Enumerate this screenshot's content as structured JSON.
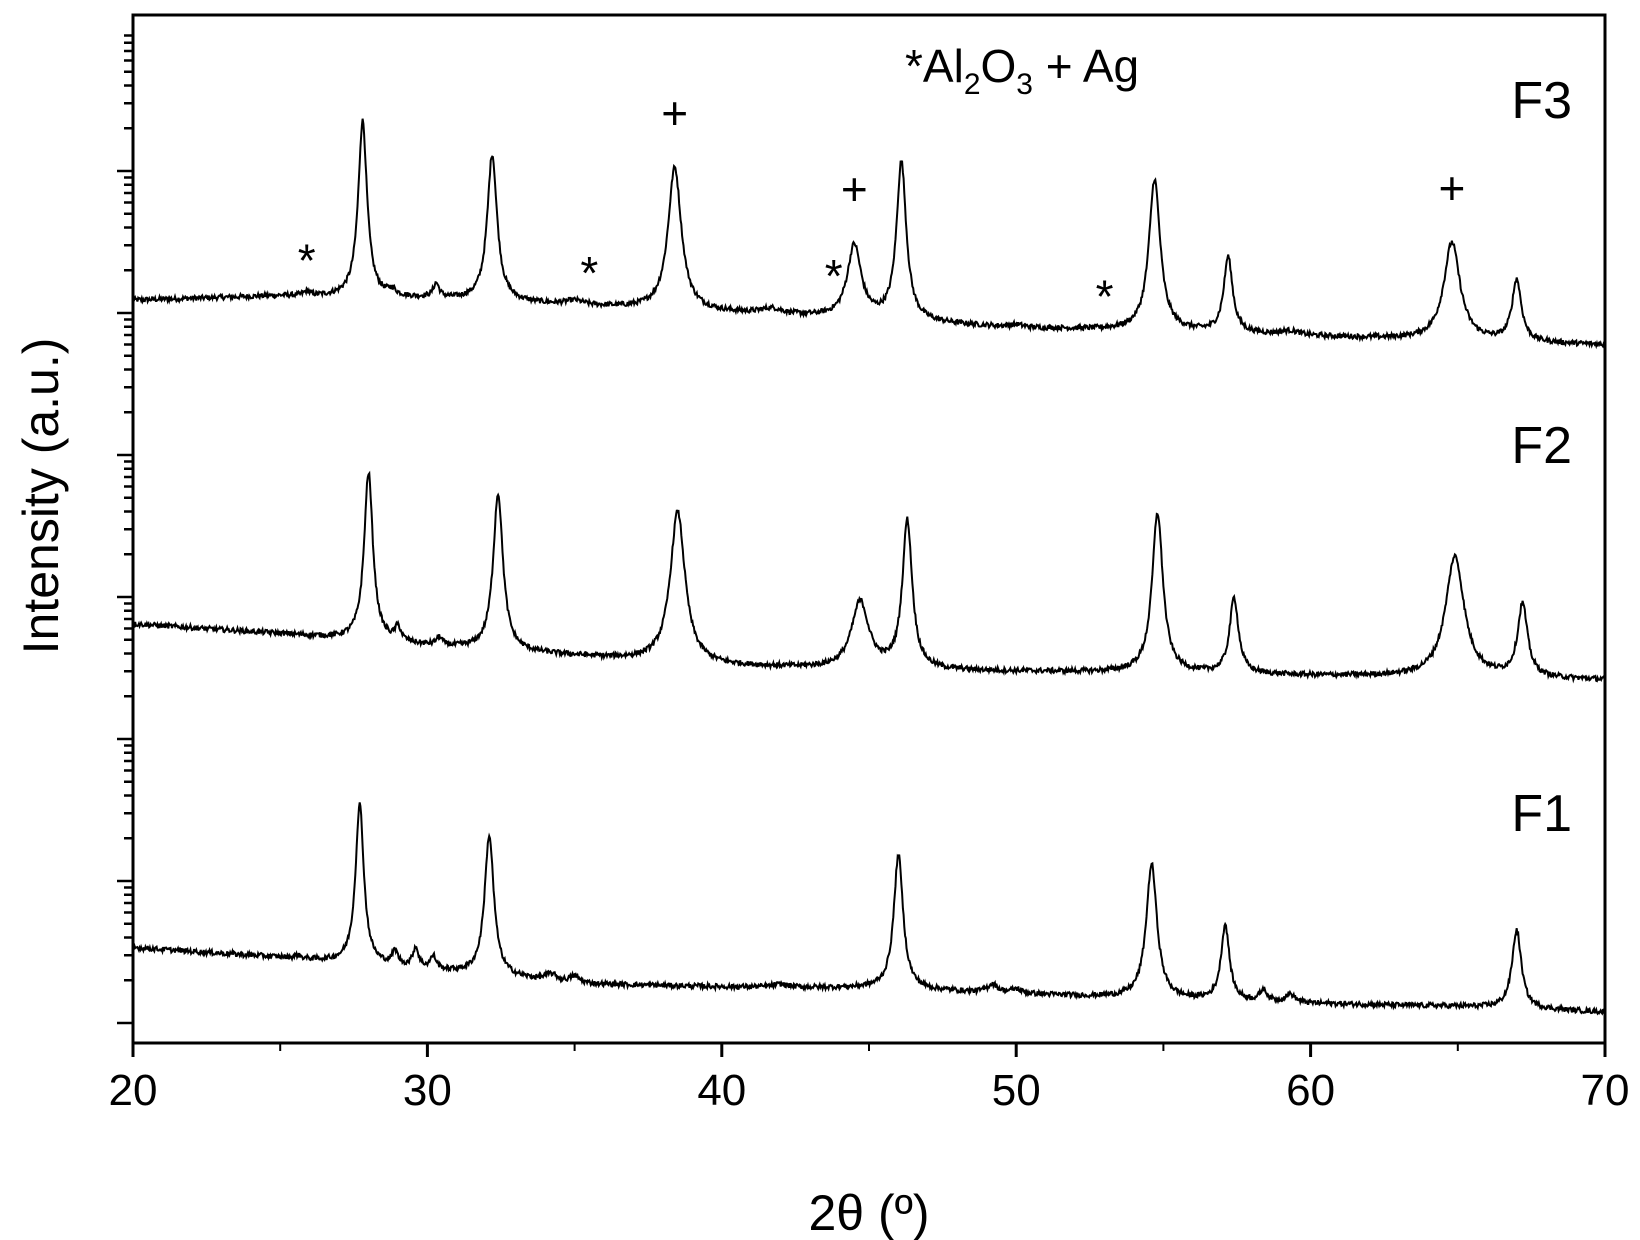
{
  "chart_data": {
    "type": "line",
    "xlabel": "2θ (º)",
    "ylabel": "Intensity (a.u.)",
    "xlim": [
      20,
      70
    ],
    "x_ticks": [
      "20",
      "30",
      "40",
      "50",
      "60",
      "70"
    ],
    "y_scale": "log",
    "legend": {
      "star": "*",
      "text_a": "Al",
      "sub_a": "2",
      "text_b": "O",
      "sub_b": "3",
      "text_c": " + Ag"
    },
    "series": [
      {
        "name": "F3",
        "baseline": [
          [
            20,
            0.16
          ],
          [
            25,
            0.175
          ],
          [
            30,
            0.165
          ],
          [
            35,
            0.14
          ],
          [
            40,
            0.115
          ],
          [
            45,
            0.09
          ],
          [
            50,
            0.06
          ],
          [
            55,
            0.05
          ],
          [
            60,
            0.03
          ],
          [
            65,
            0.015
          ],
          [
            70,
            0.0
          ]
        ],
        "peaks": [
          {
            "x": 25.9,
            "h": 0.015,
            "w": 0.12
          },
          {
            "x": 27.8,
            "h": 0.63,
            "w": 0.18
          },
          {
            "x": 28.8,
            "h": 0.02,
            "w": 0.15
          },
          {
            "x": 30.3,
            "h": 0.05,
            "w": 0.12
          },
          {
            "x": 32.2,
            "h": 0.525,
            "w": 0.2
          },
          {
            "x": 35.0,
            "h": 0.015,
            "w": 0.35
          },
          {
            "x": 38.4,
            "h": 0.51,
            "w": 0.27
          },
          {
            "x": 41.7,
            "h": 0.02,
            "w": 0.45
          },
          {
            "x": 44.5,
            "h": 0.26,
            "w": 0.28
          },
          {
            "x": 46.1,
            "h": 0.565,
            "w": 0.2
          },
          {
            "x": 50.0,
            "h": 0.01,
            "w": 0.3
          },
          {
            "x": 54.7,
            "h": 0.54,
            "w": 0.23
          },
          {
            "x": 57.2,
            "h": 0.27,
            "w": 0.18
          },
          {
            "x": 59.3,
            "h": 0.015,
            "w": 0.4
          },
          {
            "x": 64.8,
            "h": 0.35,
            "w": 0.33
          },
          {
            "x": 67.0,
            "h": 0.22,
            "w": 0.19
          }
        ],
        "markers": [
          {
            "x": 25.9,
            "symbol": "*"
          },
          {
            "x": 35.5,
            "symbol": "*"
          },
          {
            "x": 38.4,
            "symbol": "+"
          },
          {
            "x": 43.8,
            "symbol": "*"
          },
          {
            "x": 44.5,
            "symbol": "+"
          },
          {
            "x": 53.0,
            "symbol": "*"
          },
          {
            "x": 64.8,
            "symbol": "+"
          }
        ]
      },
      {
        "name": "F2",
        "baseline": [
          [
            20,
            0.2
          ],
          [
            25,
            0.165
          ],
          [
            30,
            0.12
          ],
          [
            35,
            0.085
          ],
          [
            40,
            0.05
          ],
          [
            45,
            0.035
          ],
          [
            50,
            0.03
          ],
          [
            55,
            0.025
          ],
          [
            60,
            0.015
          ],
          [
            65,
            0.01
          ],
          [
            70,
            0.0
          ]
        ],
        "peaks": [
          {
            "x": 28.0,
            "h": 0.6,
            "w": 0.18
          },
          {
            "x": 29.0,
            "h": 0.05,
            "w": 0.12
          },
          {
            "x": 30.4,
            "h": 0.03,
            "w": 0.12
          },
          {
            "x": 32.4,
            "h": 0.56,
            "w": 0.2
          },
          {
            "x": 38.5,
            "h": 0.54,
            "w": 0.3
          },
          {
            "x": 44.7,
            "h": 0.24,
            "w": 0.35
          },
          {
            "x": 46.3,
            "h": 0.53,
            "w": 0.2
          },
          {
            "x": 54.8,
            "h": 0.57,
            "w": 0.22
          },
          {
            "x": 57.4,
            "h": 0.27,
            "w": 0.18
          },
          {
            "x": 64.9,
            "h": 0.43,
            "w": 0.38
          },
          {
            "x": 67.2,
            "h": 0.26,
            "w": 0.2
          }
        ]
      },
      {
        "name": "F1",
        "baseline": [
          [
            20,
            0.23
          ],
          [
            25,
            0.195
          ],
          [
            30,
            0.15
          ],
          [
            35,
            0.1
          ],
          [
            40,
            0.09
          ],
          [
            45,
            0.085
          ],
          [
            50,
            0.065
          ],
          [
            55,
            0.045
          ],
          [
            60,
            0.03
          ],
          [
            65,
            0.02
          ],
          [
            70,
            0.0
          ]
        ],
        "peaks": [
          {
            "x": 25.6,
            "h": 0.01,
            "w": 0.12
          },
          {
            "x": 27.7,
            "h": 0.57,
            "w": 0.17
          },
          {
            "x": 28.9,
            "h": 0.05,
            "w": 0.12
          },
          {
            "x": 29.6,
            "h": 0.07,
            "w": 0.12
          },
          {
            "x": 30.2,
            "h": 0.045,
            "w": 0.12
          },
          {
            "x": 32.1,
            "h": 0.5,
            "w": 0.19
          },
          {
            "x": 34.2,
            "h": 0.025,
            "w": 0.25
          },
          {
            "x": 35.0,
            "h": 0.025,
            "w": 0.2
          },
          {
            "x": 42.0,
            "h": 0.01,
            "w": 0.3
          },
          {
            "x": 46.0,
            "h": 0.48,
            "w": 0.19
          },
          {
            "x": 49.2,
            "h": 0.03,
            "w": 0.2
          },
          {
            "x": 50.0,
            "h": 0.015,
            "w": 0.2
          },
          {
            "x": 54.6,
            "h": 0.48,
            "w": 0.22
          },
          {
            "x": 57.1,
            "h": 0.27,
            "w": 0.17
          },
          {
            "x": 58.4,
            "h": 0.04,
            "w": 0.15
          },
          {
            "x": 59.3,
            "h": 0.03,
            "w": 0.2
          },
          {
            "x": 67.0,
            "h": 0.28,
            "w": 0.19
          }
        ]
      }
    ]
  }
}
